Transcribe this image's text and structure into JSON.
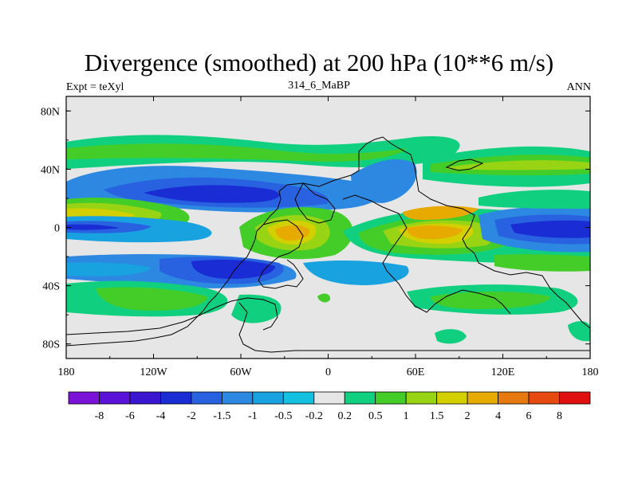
{
  "title": "Divergence (smoothed) at 200 hPa (10**6 m/s)",
  "subtitle_left": "Expt = teXyl",
  "subtitle_center": "314_6_MaBP",
  "subtitle_right": "ANN",
  "axes": {
    "x_ticks": [
      "180",
      "120W",
      "60W",
      "0",
      "60E",
      "120E",
      "180"
    ],
    "y_ticks": [
      "80N",
      "40N",
      "0",
      "40S",
      "80S"
    ],
    "x_range": [
      -180,
      180
    ],
    "y_range": [
      -90,
      90
    ]
  },
  "colorbar": {
    "colors": [
      "#7a12d8",
      "#5a12d8",
      "#3a16d0",
      "#1a2cd4",
      "#2862e0",
      "#2c88e0",
      "#18a2e0",
      "#14c0e0",
      "#e6e6e6",
      "#10d080",
      "#44cc28",
      "#98d414",
      "#d4d000",
      "#e6aa00",
      "#e67a10",
      "#e64a10",
      "#e01010"
    ],
    "labels": [
      "-8",
      "-6",
      "-4",
      "-2",
      "-1.5",
      "-1",
      "-0.5",
      "-0.2",
      "0.2",
      "0.5",
      "1",
      "1.5",
      "2",
      "4",
      "6",
      "8"
    ]
  }
}
